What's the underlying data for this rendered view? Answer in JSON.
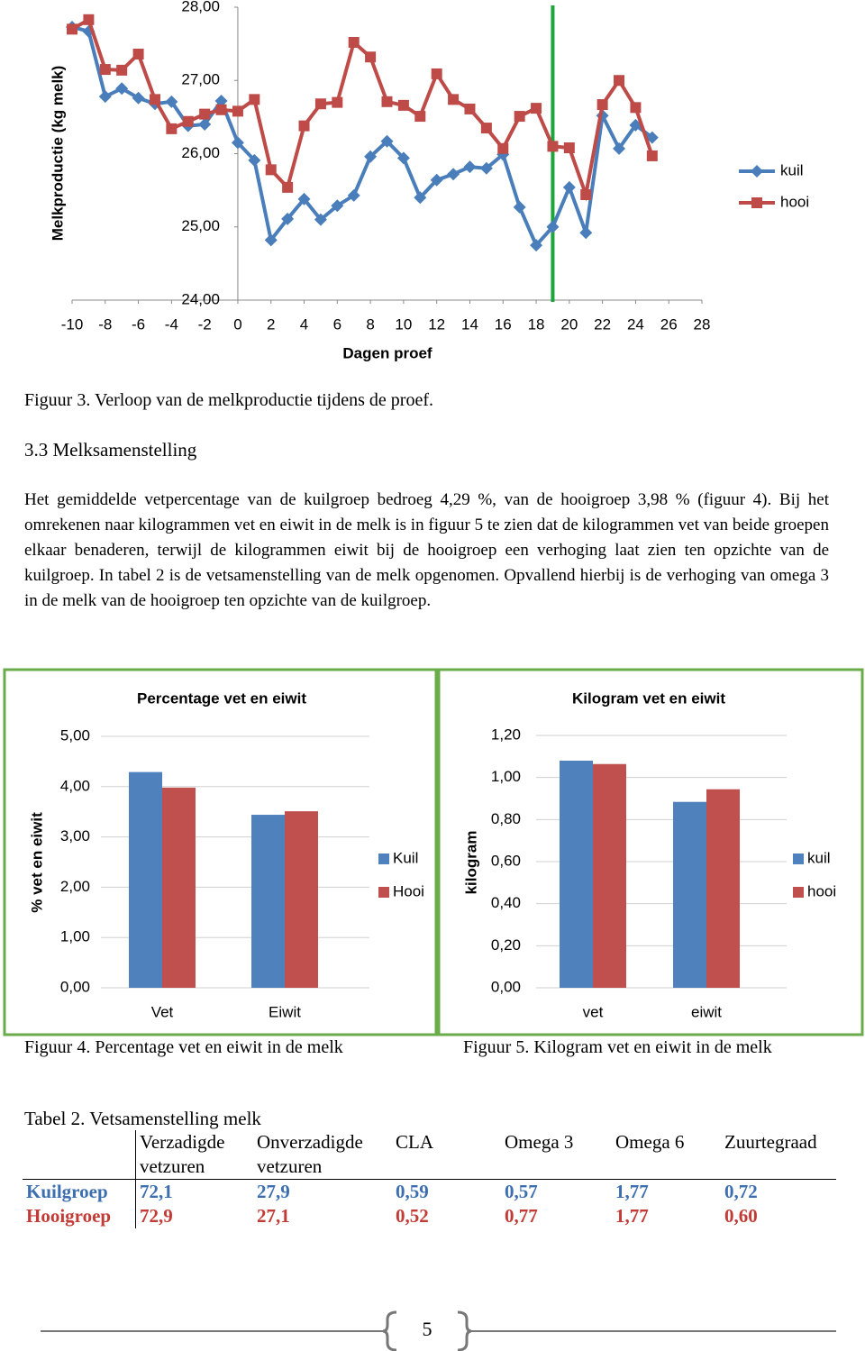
{
  "chart_data": [
    {
      "type": "line",
      "y_label": "Melkproductie (kg melk)",
      "x_label": "Dagen proef",
      "x": [
        -10,
        -9,
        -8,
        -7,
        -6,
        -5,
        -4,
        -3,
        -2,
        -1,
        0,
        1,
        2,
        3,
        4,
        5,
        6,
        7,
        8,
        9,
        10,
        11,
        12,
        13,
        14,
        15,
        16,
        17,
        18,
        19,
        20,
        21,
        22,
        23,
        24,
        25
      ],
      "series": [
        {
          "name": "kuil",
          "color": "#4a7ebb",
          "marker": "diamond",
          "values": [
            27.73,
            27.67,
            26.78,
            26.89,
            26.76,
            26.68,
            26.71,
            26.38,
            26.4,
            26.72,
            26.15,
            25.91,
            24.82,
            25.11,
            25.38,
            25.1,
            25.29,
            25.43,
            25.96,
            26.17,
            25.94,
            25.4,
            25.64,
            25.72,
            25.82,
            25.8,
            25.99,
            25.27,
            24.75,
            25.0,
            25.54,
            24.92,
            26.52,
            26.07,
            26.39,
            26.22
          ]
        },
        {
          "name": "hooi",
          "color": "#be4b48",
          "marker": "square",
          "values": [
            27.7,
            27.83,
            27.15,
            27.14,
            27.36,
            26.74,
            26.34,
            26.44,
            26.54,
            26.6,
            26.58,
            26.74,
            25.78,
            25.54,
            26.38,
            26.68,
            26.7,
            27.52,
            27.32,
            26.71,
            26.66,
            26.51,
            27.09,
            26.74,
            26.61,
            26.35,
            26.07,
            26.51,
            26.62,
            26.1,
            26.08,
            25.44,
            26.67,
            27.0,
            26.63,
            25.97
          ]
        }
      ],
      "xlim": [
        -10,
        28
      ],
      "xticks": [
        -10,
        -8,
        -6,
        -4,
        -2,
        0,
        2,
        4,
        6,
        8,
        10,
        12,
        14,
        16,
        18,
        20,
        22,
        24,
        26,
        28
      ],
      "ylim": [
        24,
        28
      ],
      "yticks": [
        {
          "value": 24,
          "label": "24,00"
        },
        {
          "value": 25,
          "label": "25,00"
        },
        {
          "value": 26,
          "label": "26,00"
        },
        {
          "value": 27,
          "label": "27,00"
        },
        {
          "value": 28,
          "label": "28,00"
        }
      ],
      "grid": false,
      "reference_line": {
        "x": 19,
        "color": "#1ca53a"
      },
      "legend": "right"
    },
    {
      "type": "bar",
      "title": "Percentage vet en eiwit",
      "y_label": "% vet en eiwit",
      "categories": [
        "Vet",
        "Eiwit"
      ],
      "series": [
        {
          "name": "Kuil",
          "color": "#4f81bd",
          "values": [
            4.29,
            3.44
          ]
        },
        {
          "name": "Hooi",
          "color": "#c0504d",
          "values": [
            3.98,
            3.51
          ]
        }
      ],
      "ylim": [
        0,
        5
      ],
      "yticks": [
        {
          "value": 0,
          "label": "0,00"
        },
        {
          "value": 1,
          "label": "1,00"
        },
        {
          "value": 2,
          "label": "2,00"
        },
        {
          "value": 3,
          "label": "3,00"
        },
        {
          "value": 4,
          "label": "4,00"
        },
        {
          "value": 5,
          "label": "5,00"
        }
      ],
      "grid": true,
      "legend": "right"
    },
    {
      "type": "bar",
      "title": "Kilogram vet en eiwit",
      "y_label": "kilogram",
      "categories": [
        "vet",
        "eiwit"
      ],
      "series": [
        {
          "name": "kuil",
          "color": "#4f81bd",
          "values": [
            1.08,
            0.884
          ]
        },
        {
          "name": "hooi",
          "color": "#c0504d",
          "values": [
            1.064,
            0.944
          ]
        }
      ],
      "ylim": [
        0,
        1.2
      ],
      "yticks": [
        {
          "value": 0,
          "label": "0,00"
        },
        {
          "value": 0.2,
          "label": "0,20"
        },
        {
          "value": 0.4,
          "label": "0,40"
        },
        {
          "value": 0.6,
          "label": "0,60"
        },
        {
          "value": 0.8,
          "label": "0,80"
        },
        {
          "value": 1,
          "label": "1,00"
        },
        {
          "value": 1.2,
          "label": "1,20"
        }
      ],
      "grid": true,
      "legend": "right"
    }
  ],
  "figure_captions": [
    "Figuur 3. Verloop van de melkproductie tijdens de proef.",
    "Figuur 4. Percentage vet en eiwit in de melk",
    "Figuur 5. Kilogram vet en eiwit in de melk"
  ],
  "section": {
    "heading": "3.3 Melksamenstelling",
    "paragraph": "Het gemiddelde vetpercentage van de kuilgroep bedroeg 4,29 %, van de hooigroep 3,98 % (figuur 4). Bij het omrekenen naar kilogrammen vet en eiwit in de melk  is in figuur 5 te zien dat de kilogrammen vet van beide groepen elkaar benaderen, terwijl de kilogrammen eiwit bij de hooigroep een verhoging laat zien ten opzichte van de kuilgroep. In tabel 2 is de vetsamenstelling van de melk opgenomen. Opvallend hierbij is de verhoging van omega 3 in de melk van de hooigroep ten opzichte van de kuilgroep."
  },
  "table": {
    "title": "Tabel 2. Vetsamenstelling melk",
    "header": [
      "Verzadigde vetzuren",
      "Onverzadigde vetzuren",
      "CLA",
      "Omega 3",
      "Omega 6",
      "Zuurtegraad"
    ],
    "rows": [
      [
        "Kuilgroep",
        "72,1",
        "27,9",
        "0,59",
        "0,57",
        "1,77",
        "0,72"
      ],
      [
        "Hooigroep",
        "72,9",
        "27,1",
        "0,52",
        "0,77",
        "1,77",
        "0,60"
      ]
    ]
  },
  "page_number": "5"
}
